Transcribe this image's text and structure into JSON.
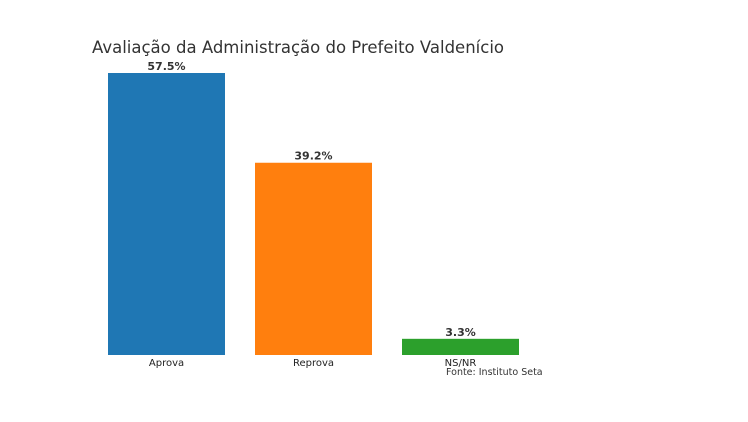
{
  "chart_data": {
    "type": "bar",
    "title": "Avaliação da Administração do Prefeito Valdenício",
    "categories": [
      "Aprova",
      "Reprova",
      "NS/NR"
    ],
    "values": [
      57.5,
      39.2,
      3.3
    ],
    "value_labels": [
      "57.5%",
      "39.2%",
      "3.3%"
    ],
    "colors": [
      "#1f77b4",
      "#ff7f0e",
      "#2ca02c"
    ],
    "xlabel": "",
    "ylabel": "",
    "ylim": [
      0,
      57.5
    ],
    "grid": false,
    "source": "Fonte: Instituto Seta"
  }
}
